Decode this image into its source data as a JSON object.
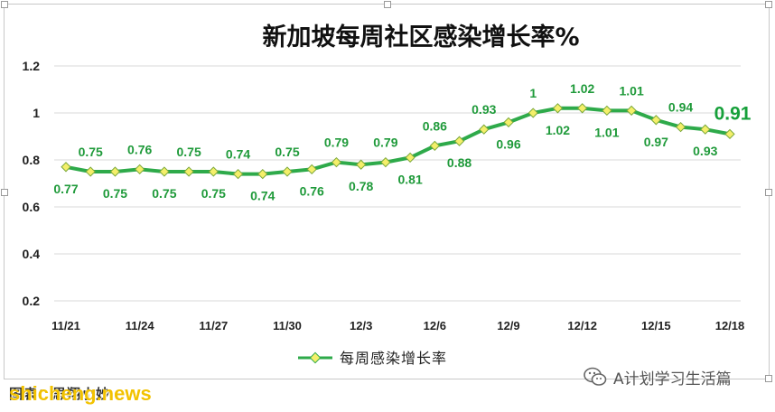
{
  "chart_data": {
    "type": "line",
    "title": "新加坡每周社区感染增长率%",
    "categories": [
      "11/21",
      "11/22",
      "11/23",
      "11/24",
      "11/25",
      "11/26",
      "11/27",
      "11/28",
      "11/29",
      "11/30",
      "12/1",
      "12/2",
      "12/3",
      "12/4",
      "12/5",
      "12/6",
      "12/7",
      "12/8",
      "12/9",
      "12/10",
      "12/11",
      "12/12",
      "12/13",
      "12/14",
      "12/15",
      "12/16",
      "12/17",
      "12/18"
    ],
    "x_tick_labels": [
      "11/21",
      "11/24",
      "11/27",
      "11/30",
      "12/3",
      "12/6",
      "12/9",
      "12/12",
      "12/15",
      "12/18"
    ],
    "series": [
      {
        "name": "每周感染增长率",
        "values": [
          0.77,
          0.75,
          0.75,
          0.76,
          0.75,
          0.75,
          0.75,
          0.74,
          0.74,
          0.75,
          0.76,
          0.79,
          0.78,
          0.79,
          0.81,
          0.86,
          0.88,
          0.93,
          0.96,
          1,
          1.02,
          1.02,
          1.01,
          1.01,
          0.97,
          0.94,
          0.93,
          0.91
        ],
        "color": "#2eaa4a",
        "marker_color": "#f4ef6a"
      }
    ],
    "ylim": [
      0.2,
      1.2
    ],
    "y_ticks": [
      "0.2",
      "0.4",
      "0.6",
      "0.8",
      "1",
      "1.2"
    ],
    "grid": true,
    "legend": "bottom",
    "label_positions": [
      "below",
      "above",
      "below",
      "above",
      "below",
      "above",
      "below",
      "above",
      "below",
      "above",
      "below",
      "above",
      "below",
      "above",
      "below",
      "above",
      "below",
      "above",
      "below",
      "above",
      "below",
      "above",
      "below",
      "above",
      "below",
      "above",
      "below",
      "above"
    ]
  },
  "legend_label": "每周感染增长率",
  "footer": {
    "source_text": "图表：思翔小妙",
    "watermark_left": "shicheng.news",
    "watermark_right": "A计划学习生活篇"
  }
}
